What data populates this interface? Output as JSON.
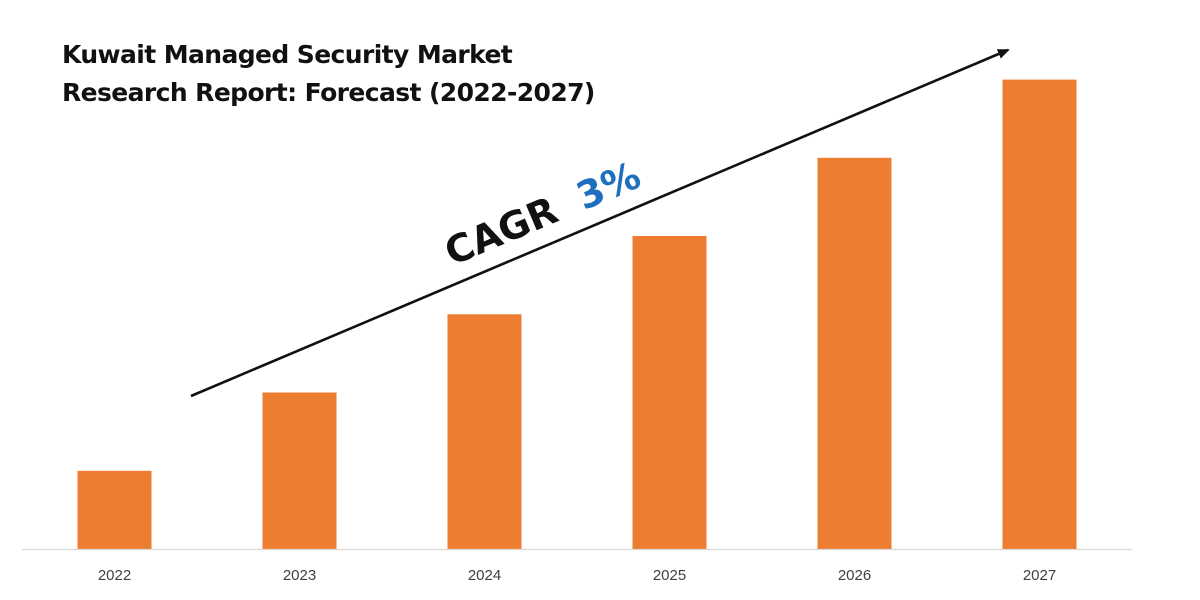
{
  "chart_data": {
    "type": "bar",
    "title_lines": [
      "Kuwait Managed Security Market",
      "Research Report: Forecast (2022-2027)"
    ],
    "categories": [
      "2022",
      "2023",
      "2024",
      "2025",
      "2026",
      "2027"
    ],
    "values": [
      1.0,
      2.0,
      3.0,
      4.0,
      5.0,
      6.0
    ],
    "ylim": [
      0,
      6.25
    ],
    "xlabel": "",
    "ylabel": "",
    "grid": false,
    "annotation": {
      "label": "CAGR",
      "value": "3%",
      "label_color": "#111111",
      "value_color": "#1f6fbf"
    },
    "colors": {
      "bar": "#ed7d31",
      "axis": "#d9d9d9",
      "arrow": "#111111"
    }
  }
}
